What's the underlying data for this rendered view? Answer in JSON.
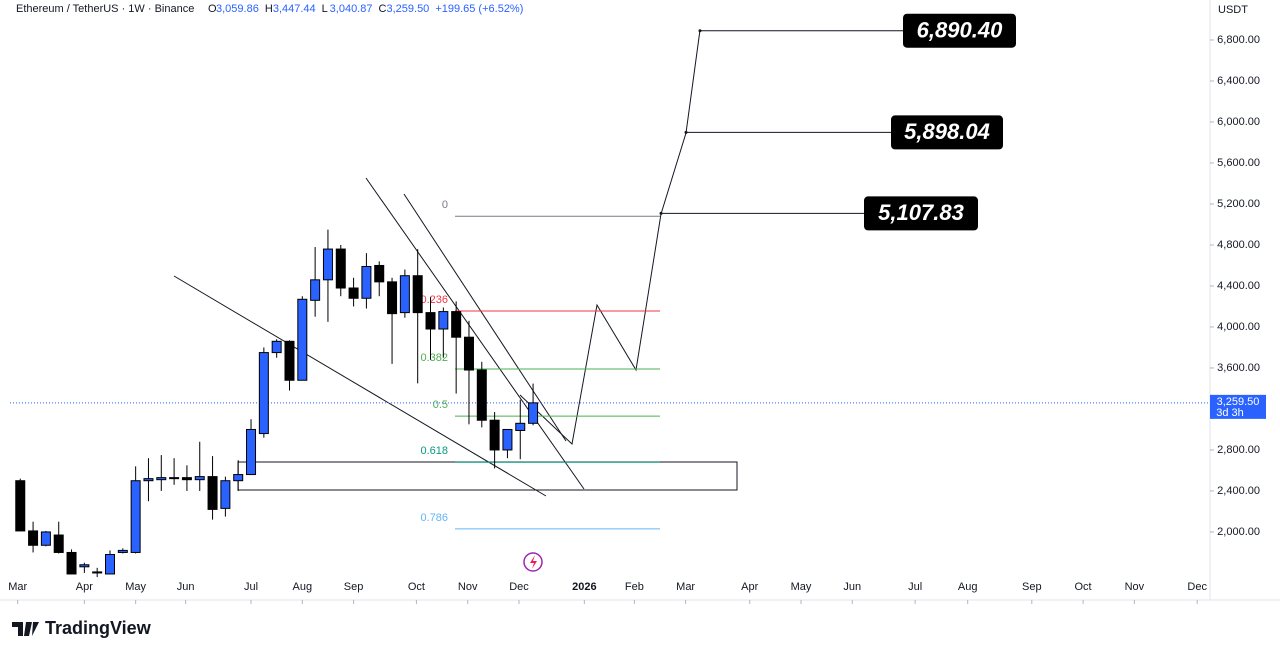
{
  "header": {
    "symbol": "Ethereum / TetherUS · 1W · Binance",
    "ohlc": [
      {
        "key": "O",
        "text": "3,059.86"
      },
      {
        "key": "H",
        "text": "3,447.44"
      },
      {
        "key": "L",
        "text": "3,040.87"
      },
      {
        "key": "C",
        "text": "3,259.50"
      }
    ],
    "change": "+199.65 (+6.52%)"
  },
  "currency": "USDT",
  "brand": "TradingView",
  "chart_data": {
    "type": "candlestick",
    "up_color": "#2962ff",
    "down_color": "#000000",
    "series": [
      {
        "open": [
          2500,
          2010,
          1870,
          1970,
          1800,
          1660,
          1600,
          1590,
          1800,
          1800,
          2500,
          2510,
          2520,
          2530,
          2510,
          2540,
          2230,
          2500,
          2560,
          2960,
          3750,
          3860,
          3480,
          4260,
          4460,
          4760,
          4380,
          4280,
          4600,
          4440,
          4140,
          4500,
          4140,
          3980,
          4150,
          3900,
          3580,
          3090,
          2800,
          2990,
          3059.86
        ],
        "high": [
          2520,
          2100,
          2010,
          2100,
          1830,
          1700,
          1650,
          1820,
          1840,
          2640,
          2720,
          2750,
          2720,
          2650,
          2880,
          2740,
          2540,
          2700,
          3100,
          3800,
          3880,
          3870,
          4300,
          4780,
          4950,
          4800,
          4480,
          4720,
          4640,
          4480,
          4560,
          4760,
          4290,
          4190,
          4250,
          4060,
          3660,
          3170,
          3000,
          3290,
          3447.44
        ],
        "low": [
          2010,
          1800,
          1860,
          1790,
          1590,
          1600,
          1560,
          1590,
          1790,
          1790,
          2300,
          2400,
          2460,
          2400,
          2400,
          2120,
          2150,
          2400,
          2560,
          2920,
          3700,
          3380,
          3480,
          4100,
          4050,
          4300,
          4200,
          4180,
          4300,
          3640,
          4090,
          3450,
          3680,
          3700,
          3350,
          3050,
          3020,
          2620,
          2720,
          2710,
          3040.87
        ],
        "close": [
          2010,
          1870,
          2000,
          1800,
          1590,
          1680,
          1610,
          1780,
          1820,
          2500,
          2520,
          2530,
          2530,
          2510,
          2540,
          2220,
          2500,
          2560,
          3000,
          3750,
          3860,
          3480,
          4270,
          4460,
          4760,
          4380,
          4280,
          4590,
          4440,
          4130,
          4500,
          4140,
          3980,
          4150,
          3900,
          3580,
          3090,
          2800,
          3000,
          3060,
          3259.5
        ]
      }
    ],
    "xlim": [
      -0.8,
      92.8
    ],
    "xticks": [
      {
        "value": -0.2,
        "label": "Mar"
      },
      {
        "value": 5,
        "label": "Apr"
      },
      {
        "value": 9,
        "label": "May"
      },
      {
        "value": 12.9,
        "label": "Jun"
      },
      {
        "value": 18,
        "label": "Jul"
      },
      {
        "value": 22,
        "label": "Aug"
      },
      {
        "value": 26,
        "label": "Sep"
      },
      {
        "value": 30.9,
        "label": "Oct"
      },
      {
        "value": 34.9,
        "label": "Nov"
      },
      {
        "value": 38.9,
        "label": "Dec"
      },
      {
        "value": 44,
        "label": "2026"
      },
      {
        "value": 47.9,
        "label": "Feb"
      },
      {
        "value": 51.9,
        "label": "Mar"
      },
      {
        "value": 56.9,
        "label": "Apr"
      },
      {
        "value": 60.9,
        "label": "May"
      },
      {
        "value": 64.9,
        "label": "Jun"
      },
      {
        "value": 69.8,
        "label": "Jul"
      },
      {
        "value": 73.9,
        "label": "Aug"
      },
      {
        "value": 78.9,
        "label": "Sep"
      },
      {
        "value": 82.9,
        "label": "Oct"
      },
      {
        "value": 86.9,
        "label": "Nov"
      },
      {
        "value": 91.8,
        "label": "Dec"
      }
    ],
    "ylim": [
      1580,
      7190
    ],
    "yticks": [
      {
        "value": 2000,
        "label": "2,000.00"
      },
      {
        "value": 2400,
        "label": "2,400.00"
      },
      {
        "value": 2800,
        "label": "2,800.00"
      },
      {
        "value": 3200,
        "label": "3,200.00"
      },
      {
        "value": 3600,
        "label": "3,600.00"
      },
      {
        "value": 4000,
        "label": "4,000.00"
      },
      {
        "value": 4400,
        "label": "4,400.00"
      },
      {
        "value": 4800,
        "label": "4,800.00"
      },
      {
        "value": 5200,
        "label": "5,200.00"
      },
      {
        "value": 5600,
        "label": "5,600.00"
      },
      {
        "value": 6000,
        "label": "6,000.00"
      },
      {
        "value": 6400,
        "label": "6,400.00"
      },
      {
        "value": 6800,
        "label": "6,800.00"
      }
    ],
    "last_price": {
      "value": 3259.5,
      "label": "3,259.50",
      "countdown": "3d 3h"
    },
    "fib_levels": [
      {
        "label": "0",
        "value": 5080,
        "color": "#787b86"
      },
      {
        "label": "0.236",
        "value": 4156,
        "color": "#f23645"
      },
      {
        "label": "0.382",
        "value": 3590,
        "color": "#4caf50"
      },
      {
        "label": "0.5",
        "value": 3130,
        "color": "#4caf50"
      },
      {
        "label": "0.618",
        "value": 2680,
        "color": "#089981"
      },
      {
        "label": "0.786",
        "value": 2030,
        "color": "#64b5f6"
      }
    ],
    "targets": [
      {
        "value": 6890.4,
        "label": "6,890.40"
      },
      {
        "value": 5898.04,
        "label": "5,898.04"
      },
      {
        "value": 5107.83,
        "label": "5,107.83"
      }
    ]
  }
}
